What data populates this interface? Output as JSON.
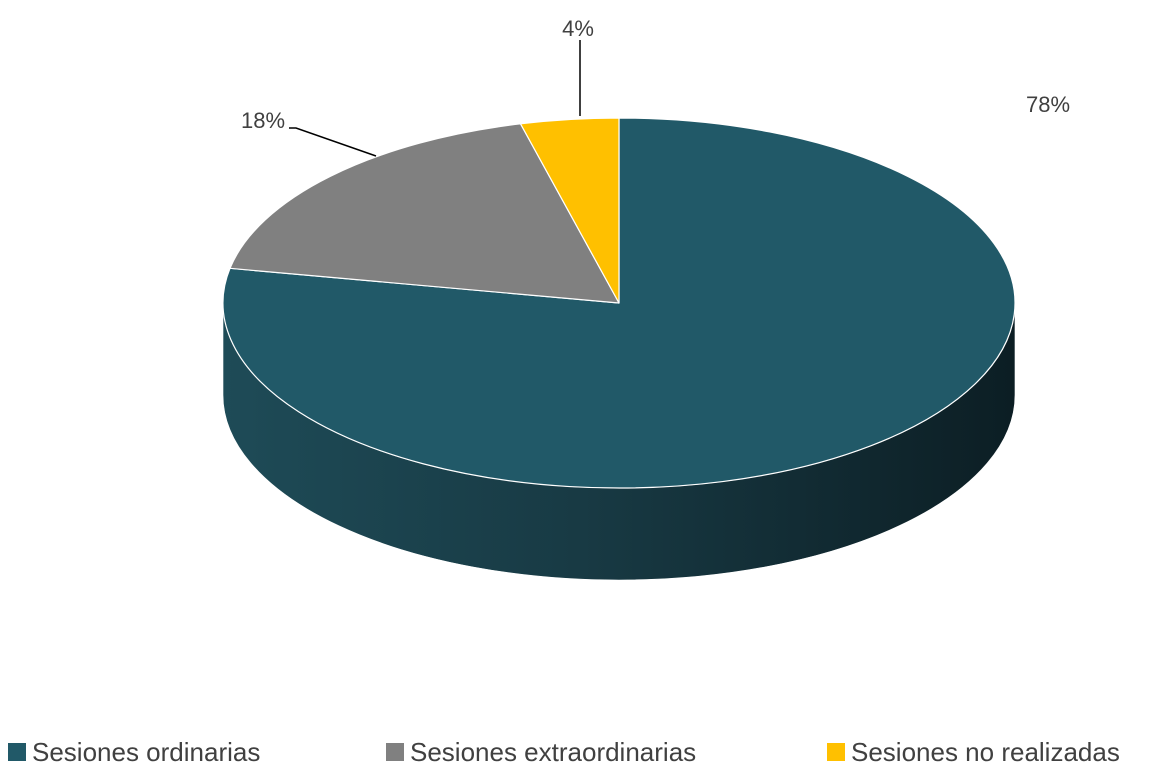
{
  "chart_data": {
    "type": "pie",
    "categories": [
      "Sesiones ordinarias",
      "Sesiones extraordinarias",
      "Sesiones no realizadas"
    ],
    "values": [
      78,
      18,
      4
    ],
    "data_labels": [
      "78%",
      "18%",
      "4%"
    ],
    "colors": [
      "#215968",
      "#808080",
      "#FFC000"
    ],
    "legend_position": "bottom",
    "style": "3d"
  }
}
